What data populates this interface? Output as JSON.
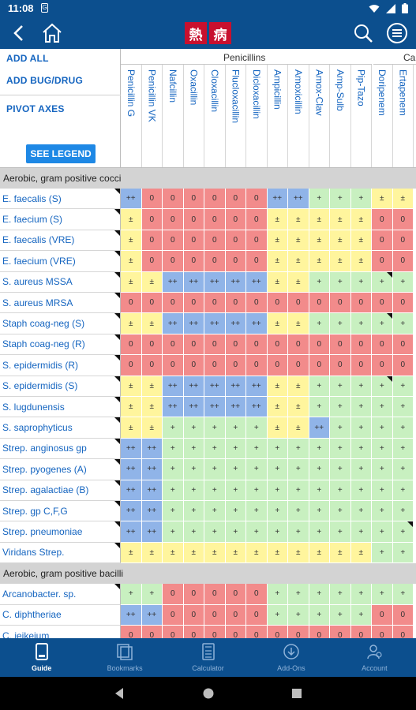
{
  "status_bar": {
    "time": "11:08",
    "sim_letter": "G"
  },
  "app": {
    "logo_chars": [
      "熱",
      "病"
    ]
  },
  "controls": {
    "add_all": "ADD ALL",
    "add_bug_drug": "ADD BUG/DRUG",
    "pivot_axes": "PIVOT AXES",
    "see_legend": "SEE LEGEND"
  },
  "header": {
    "groups": [
      {
        "label": "Penicillins"
      },
      {
        "label": "Ca"
      }
    ],
    "drugs": [
      "Penicillin G",
      "Penicillin VK",
      "Nafcillin",
      "Oxacillin",
      "Cloxacillin",
      "Flucloxacillin",
      "Dicloxacillin",
      "Ampicillin",
      "Amoxicillin",
      "Amox-Clav",
      "Amp-Sulb",
      "Pip-Tazo",
      "Doripenem",
      "Ertapenem"
    ]
  },
  "colors": {
    "red": "#f28b8b",
    "yellow": "#fff59d",
    "green": "#c8f0c0",
    "blue": "#90b4e8",
    "brand": "#0c4f8e",
    "link": "#1565c0"
  },
  "grid": {
    "sections": [
      {
        "title": "Aerobic, gram positive cocci",
        "rows": [
          {
            "bug": "E. faecalis (S)",
            "cells": [
              "++",
              "0",
              "0",
              "0",
              "0",
              "0",
              "0",
              "++",
              "++",
              "+",
              "+",
              "+",
              "±",
              "±"
            ]
          },
          {
            "bug": "E. faecium (S)",
            "cells": [
              "±",
              "0",
              "0",
              "0",
              "0",
              "0",
              "0",
              "±",
              "±",
              "±",
              "±",
              "±",
              "0",
              "0"
            ]
          },
          {
            "bug": "E. faecalis (VRE)",
            "cells": [
              "±",
              "0",
              "0",
              "0",
              "0",
              "0",
              "0",
              "±",
              "±",
              "±",
              "±",
              "±",
              "0",
              "0"
            ]
          },
          {
            "bug": "E. faecium (VRE)",
            "cells": [
              "±",
              "0",
              "0",
              "0",
              "0",
              "0",
              "0",
              "±",
              "±",
              "±",
              "±",
              "±",
              "0",
              "0"
            ]
          },
          {
            "bug": "S. aureus MSSA",
            "cells": [
              "±",
              "±",
              "++",
              "++",
              "++",
              "++",
              "++",
              "±",
              "±",
              "+",
              "+",
              "+",
              "+",
              "+"
            ]
          },
          {
            "bug": "S. aureus MRSA",
            "cells": [
              "0",
              "0",
              "0",
              "0",
              "0",
              "0",
              "0",
              "0",
              "0",
              "0",
              "0",
              "0",
              "0",
              "0"
            ]
          },
          {
            "bug": "Staph coag-neg (S)",
            "cells": [
              "±",
              "±",
              "++",
              "++",
              "++",
              "++",
              "++",
              "±",
              "±",
              "+",
              "+",
              "+",
              "+",
              "+"
            ]
          },
          {
            "bug": "Staph coag-neg (R)",
            "cells": [
              "0",
              "0",
              "0",
              "0",
              "0",
              "0",
              "0",
              "0",
              "0",
              "0",
              "0",
              "0",
              "0",
              "0"
            ]
          },
          {
            "bug": "S. epidermidis (R)",
            "cells": [
              "0",
              "0",
              "0",
              "0",
              "0",
              "0",
              "0",
              "0",
              "0",
              "0",
              "0",
              "0",
              "0",
              "0"
            ]
          },
          {
            "bug": "S. epidermidis (S)",
            "cells": [
              "±",
              "±",
              "++",
              "++",
              "++",
              "++",
              "++",
              "±",
              "±",
              "+",
              "+",
              "+",
              "+",
              "+"
            ]
          },
          {
            "bug": "S. lugdunensis",
            "cells": [
              "±",
              "±",
              "++",
              "++",
              "++",
              "++",
              "++",
              "±",
              "±",
              "+",
              "+",
              "+",
              "+",
              "+"
            ]
          },
          {
            "bug": "S. saprophyticus",
            "cells": [
              "±",
              "±",
              "+",
              "+",
              "+",
              "+",
              "+",
              "±",
              "±",
              "++",
              "+",
              "+",
              "+",
              "+"
            ]
          },
          {
            "bug": "Strep. anginosus gp",
            "cells": [
              "++",
              "++",
              "+",
              "+",
              "+",
              "+",
              "+",
              "+",
              "+",
              "+",
              "+",
              "+",
              "+",
              "+"
            ]
          },
          {
            "bug": "Strep. pyogenes (A)",
            "cells": [
              "++",
              "++",
              "+",
              "+",
              "+",
              "+",
              "+",
              "+",
              "+",
              "+",
              "+",
              "+",
              "+",
              "+"
            ]
          },
          {
            "bug": "Strep. agalactiae (B)",
            "cells": [
              "++",
              "++",
              "+",
              "+",
              "+",
              "+",
              "+",
              "+",
              "+",
              "+",
              "+",
              "+",
              "+",
              "+"
            ]
          },
          {
            "bug": "Strep. gp C,F,G",
            "cells": [
              "++",
              "++",
              "+",
              "+",
              "+",
              "+",
              "+",
              "+",
              "+",
              "+",
              "+",
              "+",
              "+",
              "+"
            ]
          },
          {
            "bug": "Strep. pneumoniae",
            "cells": [
              "++",
              "++",
              "+",
              "+",
              "+",
              "+",
              "+",
              "+",
              "+",
              "+",
              "+",
              "+",
              "+",
              "+"
            ]
          },
          {
            "bug": "Viridans Strep.",
            "cells": [
              "±",
              "±",
              "±",
              "±",
              "±",
              "±",
              "±",
              "±",
              "±",
              "±",
              "±",
              "±",
              "+",
              "+"
            ]
          }
        ]
      },
      {
        "title": "Aerobic, gram positive bacilli",
        "rows": [
          {
            "bug": "Arcanobacter. sp.",
            "cells": [
              "+",
              "+",
              "0",
              "0",
              "0",
              "0",
              "0",
              "+",
              "+",
              "+",
              "+",
              "+",
              "+",
              "+"
            ]
          },
          {
            "bug": "C. diphtheriae",
            "cells": [
              "++",
              "++",
              "0",
              "0",
              "0",
              "0",
              "0",
              "+",
              "+",
              "+",
              "+",
              "+",
              "0",
              "0"
            ]
          },
          {
            "bug": "C. jeikeium",
            "cells": [
              "0",
              "0",
              "0",
              "0",
              "0",
              "0",
              "0",
              "0",
              "0",
              "0",
              "0",
              "0",
              "0",
              "0"
            ]
          }
        ]
      }
    ]
  },
  "bottom_nav": [
    {
      "label": "Guide",
      "icon": "guide-icon",
      "active": true
    },
    {
      "label": "Bookmarks",
      "icon": "bookmarks-icon",
      "active": false
    },
    {
      "label": "Calculator",
      "icon": "calculator-icon",
      "active": false
    },
    {
      "label": "Add-Ons",
      "icon": "add-ons-icon",
      "active": false
    },
    {
      "label": "Account",
      "icon": "account-icon",
      "active": false
    }
  ]
}
